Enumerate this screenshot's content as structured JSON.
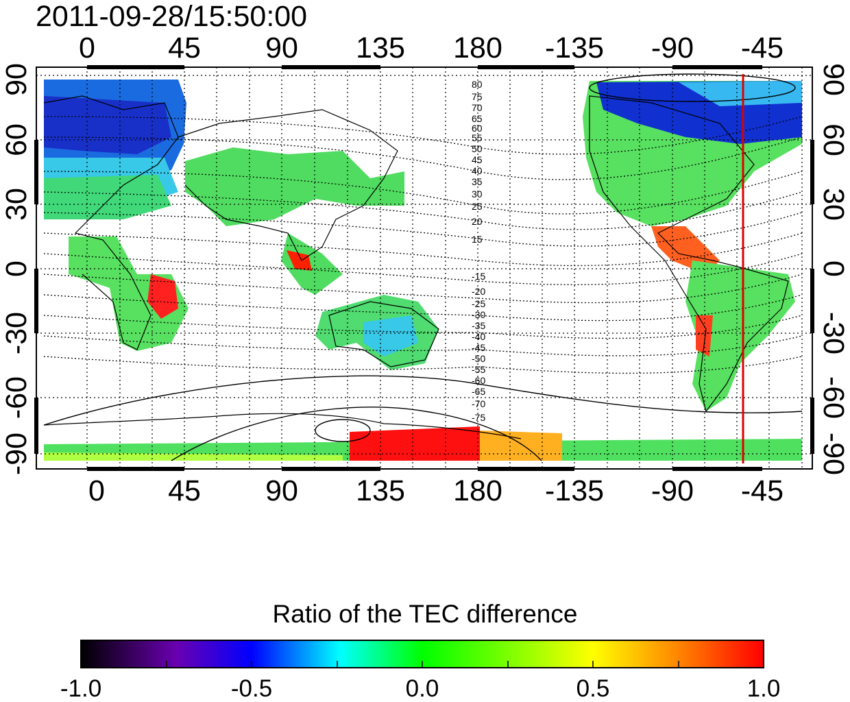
{
  "title": "2011-09-28/15:50:00",
  "top_lon_ticks": [
    "0",
    "45",
    "90",
    "135",
    "180",
    "-135",
    "-90",
    "-45"
  ],
  "bottom_lon_ticks": [
    "0",
    "45",
    "90",
    "135",
    "180",
    "-135",
    "-90",
    "-45"
  ],
  "left_lat_ticks": [
    "90",
    "60",
    "30",
    "0",
    "-30",
    "-60",
    "-90"
  ],
  "right_lat_ticks": [
    "90",
    "60",
    "30",
    "0",
    "-30",
    "-60",
    "-90"
  ],
  "contour_labels_north": [
    "80",
    "75",
    "70",
    "65",
    "60",
    "55",
    "50",
    "45",
    "40",
    "35",
    "30",
    "25",
    "20",
    "15"
  ],
  "contour_labels_south": [
    "-15",
    "-20",
    "-25",
    "-30",
    "-35",
    "-40",
    "-45",
    "-50",
    "-55",
    "-60",
    "-65",
    "-70",
    "-75"
  ],
  "colorbar": {
    "title": "Ratio of the TEC difference",
    "ticks": [
      "-1.0",
      "-0.5",
      "0.0",
      "0.5",
      "1.0"
    ],
    "range": [
      -1.0,
      1.0
    ],
    "colors": [
      "#000000",
      "#6a00b0",
      "#0000ff",
      "#00ffff",
      "#00ff00",
      "#ffff00",
      "#ff8000",
      "#ff0000"
    ]
  },
  "colors": {
    "marker_line": "#e00000",
    "frame": "#000000"
  }
}
